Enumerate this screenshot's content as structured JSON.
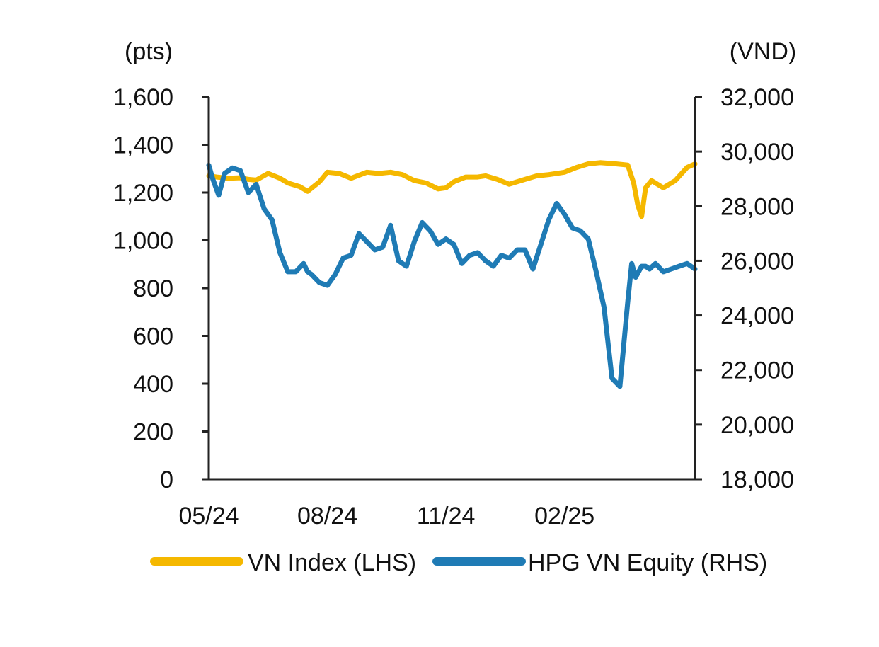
{
  "chart_data": {
    "type": "line",
    "title": "",
    "left_axis": {
      "unit": "(pts)",
      "ylim": [
        0,
        1600
      ],
      "ticks": [
        0,
        200,
        400,
        600,
        800,
        1000,
        1200,
        1400,
        1600
      ],
      "tick_labels": [
        "0",
        "200",
        "400",
        "600",
        "800",
        "1,000",
        "1,200",
        "1,400",
        "1,600"
      ]
    },
    "right_axis": {
      "unit": "(VND)",
      "ylim": [
        18000,
        32000
      ],
      "ticks": [
        18000,
        20000,
        22000,
        24000,
        26000,
        28000,
        30000,
        32000
      ],
      "tick_labels": [
        "18,000",
        "20,000",
        "22,000",
        "24,000",
        "26,000",
        "28,000",
        "30,000",
        "32,000"
      ]
    },
    "x_axis": {
      "range": [
        0,
        12.3
      ],
      "units": "months since 05/2024",
      "ticks": [
        0,
        3,
        6,
        9
      ],
      "tick_labels": [
        "05/24",
        "08/24",
        "11/24",
        "02/25"
      ]
    },
    "legend_position": "bottom",
    "series": [
      {
        "name": "VN Index (LHS)",
        "axis": "left",
        "color": "#F5B800",
        "x": [
          0,
          0.2,
          0.5,
          0.8,
          1.0,
          1.2,
          1.5,
          1.8,
          2.0,
          2.3,
          2.5,
          2.8,
          3.0,
          3.3,
          3.6,
          4.0,
          4.3,
          4.6,
          4.9,
          5.2,
          5.5,
          5.8,
          6.0,
          6.2,
          6.5,
          6.8,
          7.0,
          7.3,
          7.6,
          8.0,
          8.3,
          8.6,
          9.0,
          9.3,
          9.6,
          9.9,
          10.3,
          10.6,
          10.75,
          10.85,
          10.95,
          11.05,
          11.2,
          11.5,
          11.8,
          12.1,
          12.3
        ],
        "values": [
          1270,
          1265,
          1260,
          1262,
          1255,
          1252,
          1280,
          1260,
          1240,
          1225,
          1205,
          1245,
          1285,
          1280,
          1260,
          1285,
          1280,
          1285,
          1275,
          1250,
          1240,
          1215,
          1220,
          1245,
          1265,
          1265,
          1270,
          1255,
          1235,
          1255,
          1270,
          1275,
          1285,
          1305,
          1320,
          1325,
          1320,
          1315,
          1240,
          1150,
          1100,
          1220,
          1250,
          1220,
          1250,
          1305,
          1320
        ]
      },
      {
        "name": "HPG VN Equity (RHS)",
        "axis": "right",
        "color": "#1F7BB5",
        "x": [
          0,
          0.1,
          0.25,
          0.4,
          0.6,
          0.8,
          1.0,
          1.2,
          1.4,
          1.6,
          1.8,
          2.0,
          2.2,
          2.4,
          2.5,
          2.6,
          2.8,
          3.0,
          3.2,
          3.4,
          3.6,
          3.8,
          4.0,
          4.2,
          4.4,
          4.6,
          4.8,
          5.0,
          5.2,
          5.4,
          5.6,
          5.8,
          6.0,
          6.2,
          6.4,
          6.6,
          6.8,
          7.0,
          7.2,
          7.4,
          7.6,
          7.8,
          8.0,
          8.2,
          8.4,
          8.6,
          8.8,
          9.0,
          9.2,
          9.4,
          9.6,
          9.8,
          10.0,
          10.2,
          10.4,
          10.6,
          10.7,
          10.8,
          10.95,
          11.05,
          11.15,
          11.3,
          11.5,
          11.7,
          11.9,
          12.1,
          12.3
        ],
        "values": [
          29500,
          29000,
          28400,
          29200,
          29400,
          29300,
          28500,
          28800,
          27900,
          27500,
          26300,
          25600,
          25600,
          25900,
          25600,
          25500,
          25200,
          25100,
          25500,
          26100,
          26200,
          27000,
          26700,
          26400,
          26500,
          27300,
          26000,
          25800,
          26700,
          27400,
          27100,
          26600,
          26800,
          26600,
          25900,
          26200,
          26300,
          26000,
          25800,
          26200,
          26100,
          26400,
          26400,
          25700,
          26600,
          27500,
          28100,
          27700,
          27200,
          27100,
          26800,
          25600,
          24300,
          21700,
          21400,
          24500,
          25900,
          25400,
          25800,
          25800,
          25700,
          25900,
          25600,
          25700,
          25800,
          25900,
          25700
        ]
      }
    ]
  }
}
